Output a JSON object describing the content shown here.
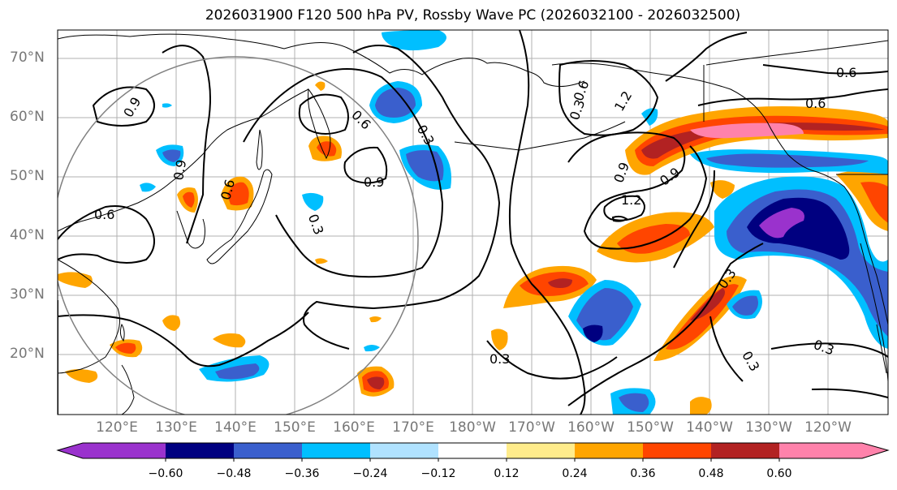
{
  "title": "2026031900 F120 500 hPa PV, Rossby Wave PC (2026032100 - 2026032500)",
  "latitude_labels": [
    "70°N",
    "60°N",
    "50°N",
    "40°N",
    "30°N",
    "20°N"
  ],
  "longitude_labels": [
    "120°E",
    "130°E",
    "140°E",
    "150°E",
    "160°E",
    "170°E",
    "180°W",
    "170°W",
    "160°W",
    "150°W",
    "140°W",
    "130°W",
    "120°W"
  ],
  "contour_labels": [
    "0.9",
    "0.6",
    "0.9",
    "0.3",
    "0.9",
    "0.6",
    "0.3",
    "1.2",
    "1.2",
    "0.9",
    "0.6",
    "0.6",
    "0.3",
    "0.3",
    "0.3",
    "0.3",
    "0.6",
    "0.6",
    "0.9",
    "0.3"
  ],
  "colorbar": {
    "levels": [
      "−0.60",
      "−0.48",
      "−0.36",
      "−0.24",
      "−0.12",
      "0.12",
      "0.24",
      "0.36",
      "0.48",
      "0.60"
    ],
    "colors": [
      "#9a32cd",
      "#000080",
      "#3a5fcd",
      "#00bfff",
      "#b0e2ff",
      "#ffffff",
      "#ffec8b",
      "#ffa500",
      "#ff4500",
      "#b22222",
      "#ff82ab"
    ]
  },
  "shading_colors": {
    "purple": "#9a32cd",
    "navy": "#000080",
    "royal": "#3a5fcd",
    "sky": "#00bfff",
    "pale_blue": "#b0e2ff",
    "yellow": "#ffec8b",
    "orange": "#ffa500",
    "orange_red": "#ff4500",
    "firebrick": "#b22222",
    "pink": "#ff82ab"
  }
}
